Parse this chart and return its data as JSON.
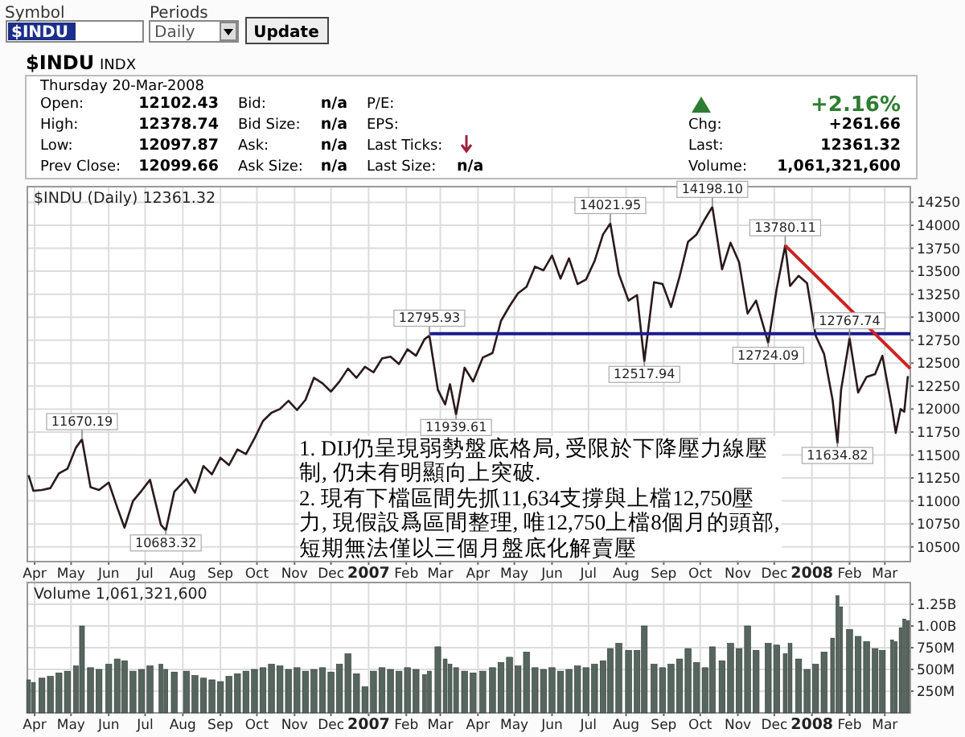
{
  "chart_data": [
    {
      "type": "other",
      "annotations": [
        "Symbol",
        "Periods",
        "$INDU",
        "Daily",
        "Update",
        "$INDU",
        "INDX",
        "Thursday  20-Mar-2008",
        "Open:",
        "12102.43",
        "Bid:",
        "n/a",
        "P/E:",
        "+2.16%",
        "High:",
        "12378.74",
        "Bid Size:",
        "n/a",
        "EPS:",
        "Chg:",
        "+261.66",
        "Low:",
        "12097.87",
        "Ask:",
        "n/a",
        "Last Ticks:",
        "Last:",
        "12361.32",
        "Prev Close:",
        "12099.66",
        "Ask Size:",
        "n/a",
        "Last Size:",
        "n/a",
        "Volume:",
        "1,061,321,600"
      ]
    },
    {
      "type": "line",
      "title": "$INDU (Daily) 12361.32",
      "grid": true,
      "xlim": [
        "2006-03-26",
        "2008-03-22"
      ],
      "ylim": [
        10340,
        14420
      ],
      "yticks": [
        10500,
        10750,
        11000,
        11250,
        11500,
        11750,
        12000,
        12250,
        12500,
        12750,
        13000,
        13250,
        13500,
        13750,
        14000,
        14250
      ],
      "xticks": [
        {
          "value": "2006-04-01",
          "label": "Apr"
        },
        {
          "value": "2006-05-01",
          "label": "May"
        },
        {
          "value": "2006-06-01",
          "label": "Jun"
        },
        {
          "value": "2006-07-01",
          "label": "Jul"
        },
        {
          "value": "2006-08-01",
          "label": "Aug"
        },
        {
          "value": "2006-09-01",
          "label": "Sep"
        },
        {
          "value": "2006-10-01",
          "label": "Oct"
        },
        {
          "value": "2006-11-01",
          "label": "Nov"
        },
        {
          "value": "2006-12-01",
          "label": "Dec"
        },
        {
          "value": "2007-01-01",
          "label": "2007"
        },
        {
          "value": "2007-02-01",
          "label": "Feb"
        },
        {
          "value": "2007-03-01",
          "label": "Mar"
        },
        {
          "value": "2007-04-01",
          "label": "Apr"
        },
        {
          "value": "2007-05-01",
          "label": "May"
        },
        {
          "value": "2007-06-01",
          "label": "Jun"
        },
        {
          "value": "2007-07-01",
          "label": "Jul"
        },
        {
          "value": "2007-08-01",
          "label": "Aug"
        },
        {
          "value": "2007-09-01",
          "label": "Sep"
        },
        {
          "value": "2007-10-01",
          "label": "Oct"
        },
        {
          "value": "2007-11-01",
          "label": "Nov"
        },
        {
          "value": "2007-12-01",
          "label": "Dec"
        },
        {
          "value": "2008-01-01",
          "label": "2008"
        },
        {
          "value": "2008-02-01",
          "label": "Feb"
        },
        {
          "value": "2008-03-01",
          "label": "Mar"
        }
      ],
      "x": [
        "2006-03-27",
        "2006-03-31",
        "2006-04-07",
        "2006-04-14",
        "2006-04-21",
        "2006-04-28",
        "2006-05-05",
        "2006-05-10",
        "2006-05-17",
        "2006-05-24",
        "2006-06-01",
        "2006-06-08",
        "2006-06-14",
        "2006-06-21",
        "2006-06-28",
        "2006-07-05",
        "2006-07-14",
        "2006-07-18",
        "2006-07-25",
        "2006-08-04",
        "2006-08-11",
        "2006-08-18",
        "2006-08-25",
        "2006-09-01",
        "2006-09-08",
        "2006-09-15",
        "2006-09-22",
        "2006-09-29",
        "2006-10-06",
        "2006-10-13",
        "2006-10-20",
        "2006-10-27",
        "2006-11-03",
        "2006-11-10",
        "2006-11-17",
        "2006-11-24",
        "2006-12-01",
        "2006-12-08",
        "2006-12-15",
        "2006-12-22",
        "2006-12-29",
        "2007-01-05",
        "2007-01-12",
        "2007-01-19",
        "2007-01-26",
        "2007-02-02",
        "2007-02-09",
        "2007-02-16",
        "2007-02-20",
        "2007-02-27",
        "2007-03-05",
        "2007-03-09",
        "2007-03-14",
        "2007-03-21",
        "2007-03-28",
        "2007-04-05",
        "2007-04-13",
        "2007-04-20",
        "2007-04-27",
        "2007-05-04",
        "2007-05-11",
        "2007-05-18",
        "2007-05-25",
        "2007-06-01",
        "2007-06-08",
        "2007-06-15",
        "2007-06-22",
        "2007-06-29",
        "2007-07-06",
        "2007-07-13",
        "2007-07-19",
        "2007-07-26",
        "2007-08-03",
        "2007-08-10",
        "2007-08-16",
        "2007-08-24",
        "2007-08-31",
        "2007-09-07",
        "2007-09-14",
        "2007-09-21",
        "2007-09-28",
        "2007-10-05",
        "2007-10-11",
        "2007-10-19",
        "2007-10-26",
        "2007-11-02",
        "2007-11-09",
        "2007-11-16",
        "2007-11-26",
        "2007-12-03",
        "2007-12-10",
        "2007-12-14",
        "2007-12-21",
        "2007-12-28",
        "2008-01-04",
        "2008-01-11",
        "2008-01-18",
        "2008-01-22",
        "2008-01-25",
        "2008-02-01",
        "2008-02-08",
        "2008-02-15",
        "2008-02-22",
        "2008-02-28",
        "2008-03-07",
        "2008-03-10",
        "2008-03-14",
        "2008-03-17",
        "2008-03-20"
      ],
      "series": [
        {
          "color": "#2a1a1a",
          "values": [
            11280,
            11110,
            11120,
            11140,
            11300,
            11350,
            11580,
            11670,
            11150,
            11120,
            11200,
            10930,
            10710,
            11000,
            11110,
            11230,
            10740,
            10680,
            11100,
            11240,
            11090,
            11380,
            11290,
            11470,
            11390,
            11560,
            11510,
            11680,
            11870,
            11960,
            12000,
            12090,
            11990,
            12100,
            12340,
            12280,
            12190,
            12300,
            12440,
            12340,
            12460,
            12400,
            12550,
            12570,
            12490,
            12650,
            12580,
            12760,
            12800,
            12210,
            12050,
            12270,
            11940,
            12450,
            12300,
            12560,
            12610,
            12960,
            13120,
            13260,
            13330,
            13550,
            13510,
            13670,
            13420,
            13640,
            13360,
            13410,
            13610,
            13900,
            14020,
            13470,
            13180,
            13240,
            12520,
            13380,
            13360,
            13110,
            13440,
            13820,
            13900,
            14070,
            14200,
            13520,
            13810,
            13600,
            13040,
            13180,
            12720,
            13310,
            13780,
            13340,
            13450,
            13370,
            12800,
            12600,
            12100,
            11630,
            12210,
            12770,
            12180,
            12350,
            12380,
            12580,
            12000,
            11740,
            12000,
            11970,
            12360
          ]
        },
        {
          "type": "line",
          "color": "#1c1c8c",
          "x": [
            "2007-02-20",
            "2008-03-22"
          ],
          "values": [
            12820,
            12820
          ]
        },
        {
          "type": "line",
          "color": "#cc2222",
          "x": [
            "2007-12-10",
            "2008-03-22"
          ],
          "values": [
            13780,
            12440
          ]
        }
      ],
      "annotations": [
        {
          "text": "11670.19",
          "x": "2006-05-10",
          "y": 11670.19
        },
        {
          "text": "10683.32",
          "x": "2006-07-18",
          "y": 10683.32
        },
        {
          "text": "12795.93",
          "x": "2007-02-20",
          "y": 12795.93
        },
        {
          "text": "11939.61",
          "x": "2007-03-14",
          "y": 11939.61
        },
        {
          "text": "14021.95",
          "x": "2007-07-19",
          "y": 14021.95
        },
        {
          "text": "12517.94",
          "x": "2007-08-16",
          "y": 12517.94
        },
        {
          "text": "14198.10",
          "x": "2007-10-11",
          "y": 14198.1
        },
        {
          "text": "13780.11",
          "x": "2007-12-10",
          "y": 13780.11
        },
        {
          "text": "12724.09",
          "x": "2007-11-26",
          "y": 12724.09
        },
        {
          "text": "12767.74",
          "x": "2008-02-01",
          "y": 12767.74
        },
        {
          "text": "11634.82",
          "x": "2008-01-22",
          "y": 11634.82
        },
        "1. DIJ仍呈現弱勢盤底格局, 受限於下降壓力線壓制, 仍未有明顯向上突破.",
        "2. 現有下檔區間先抓11,634支撐與上檔12,750壓力, 現假設爲區間整理, 唯12,750上檔8個月的頭部, 短期無法僅以三個月盤底化解賣壓"
      ]
    },
    {
      "type": "bar",
      "title": "Volume 1,061,321,600",
      "grid": true,
      "xlim": [
        "2006-03-26",
        "2008-03-22"
      ],
      "ylim": [
        0,
        1500000000
      ],
      "yticks": [
        {
          "value": 250000000,
          "label": "250M"
        },
        {
          "value": 500000000,
          "label": "500M"
        },
        {
          "value": 750000000,
          "label": "750M"
        },
        {
          "value": 1000000000,
          "label": "1.00B"
        },
        {
          "value": 1250000000,
          "label": "1.25B"
        }
      ],
      "xticks": [
        {
          "value": "2006-04-01",
          "label": "Apr"
        },
        {
          "value": "2006-05-01",
          "label": "May"
        },
        {
          "value": "2006-06-01",
          "label": "Jun"
        },
        {
          "value": "2006-07-01",
          "label": "Jul"
        },
        {
          "value": "2006-08-01",
          "label": "Aug"
        },
        {
          "value": "2006-09-01",
          "label": "Sep"
        },
        {
          "value": "2006-10-01",
          "label": "Oct"
        },
        {
          "value": "2006-11-01",
          "label": "Nov"
        },
        {
          "value": "2006-12-01",
          "label": "Dec"
        },
        {
          "value": "2007-01-01",
          "label": "2007"
        },
        {
          "value": "2007-02-01",
          "label": "Feb"
        },
        {
          "value": "2007-03-01",
          "label": "Mar"
        },
        {
          "value": "2007-04-01",
          "label": "Apr"
        },
        {
          "value": "2007-05-01",
          "label": "May"
        },
        {
          "value": "2007-06-01",
          "label": "Jun"
        },
        {
          "value": "2007-07-01",
          "label": "Jul"
        },
        {
          "value": "2007-08-01",
          "label": "Aug"
        },
        {
          "value": "2007-09-01",
          "label": "Sep"
        },
        {
          "value": "2007-10-01",
          "label": "Oct"
        },
        {
          "value": "2007-11-01",
          "label": "Nov"
        },
        {
          "value": "2007-12-01",
          "label": "Dec"
        },
        {
          "value": "2008-01-01",
          "label": "2008"
        },
        {
          "value": "2008-02-01",
          "label": "Feb"
        },
        {
          "value": "2008-03-01",
          "label": "Mar"
        }
      ],
      "x": [
        "2006-03-27",
        "2006-03-31",
        "2006-04-07",
        "2006-04-14",
        "2006-04-21",
        "2006-04-28",
        "2006-05-05",
        "2006-05-10",
        "2006-05-17",
        "2006-05-24",
        "2006-06-01",
        "2006-06-08",
        "2006-06-14",
        "2006-06-21",
        "2006-06-28",
        "2006-07-05",
        "2006-07-14",
        "2006-07-18",
        "2006-07-25",
        "2006-08-04",
        "2006-08-11",
        "2006-08-18",
        "2006-08-25",
        "2006-09-01",
        "2006-09-08",
        "2006-09-15",
        "2006-09-22",
        "2006-09-29",
        "2006-10-06",
        "2006-10-13",
        "2006-10-20",
        "2006-10-27",
        "2006-11-03",
        "2006-11-10",
        "2006-11-17",
        "2006-11-24",
        "2006-12-01",
        "2006-12-08",
        "2006-12-15",
        "2006-12-22",
        "2006-12-29",
        "2007-01-05",
        "2007-01-12",
        "2007-01-19",
        "2007-01-26",
        "2007-02-02",
        "2007-02-09",
        "2007-02-16",
        "2007-02-20",
        "2007-02-27",
        "2007-03-05",
        "2007-03-09",
        "2007-03-14",
        "2007-03-21",
        "2007-03-28",
        "2007-04-05",
        "2007-04-13",
        "2007-04-20",
        "2007-04-27",
        "2007-05-04",
        "2007-05-11",
        "2007-05-18",
        "2007-05-25",
        "2007-06-01",
        "2007-06-08",
        "2007-06-15",
        "2007-06-22",
        "2007-06-29",
        "2007-07-06",
        "2007-07-13",
        "2007-07-19",
        "2007-07-26",
        "2007-08-03",
        "2007-08-10",
        "2007-08-16",
        "2007-08-24",
        "2007-08-31",
        "2007-09-07",
        "2007-09-14",
        "2007-09-21",
        "2007-09-28",
        "2007-10-05",
        "2007-10-11",
        "2007-10-19",
        "2007-10-26",
        "2007-11-02",
        "2007-11-09",
        "2007-11-16",
        "2007-11-26",
        "2007-12-03",
        "2007-12-10",
        "2007-12-14",
        "2007-12-21",
        "2007-12-28",
        "2008-01-04",
        "2008-01-11",
        "2008-01-18",
        "2008-01-22",
        "2008-01-25",
        "2008-02-01",
        "2008-02-08",
        "2008-02-15",
        "2008-02-22",
        "2008-02-28",
        "2008-03-07",
        "2008-03-10",
        "2008-03-14",
        "2008-03-17",
        "2008-03-20"
      ],
      "series": [
        {
          "color": "#56665f",
          "values": [
            380000000,
            350000000,
            400000000,
            420000000,
            460000000,
            480000000,
            540000000,
            1000000000,
            520000000,
            500000000,
            560000000,
            620000000,
            600000000,
            480000000,
            500000000,
            540000000,
            560000000,
            500000000,
            470000000,
            480000000,
            430000000,
            400000000,
            380000000,
            360000000,
            420000000,
            450000000,
            480000000,
            500000000,
            520000000,
            560000000,
            540000000,
            500000000,
            520000000,
            480000000,
            500000000,
            520000000,
            470000000,
            560000000,
            680000000,
            450000000,
            300000000,
            480000000,
            520000000,
            500000000,
            480000000,
            520000000,
            500000000,
            440000000,
            480000000,
            760000000,
            620000000,
            560000000,
            520000000,
            480000000,
            460000000,
            480000000,
            520000000,
            580000000,
            640000000,
            540000000,
            700000000,
            520000000,
            500000000,
            520000000,
            480000000,
            500000000,
            540000000,
            520000000,
            560000000,
            600000000,
            740000000,
            800000000,
            720000000,
            720000000,
            1000000000,
            560000000,
            520000000,
            560000000,
            620000000,
            740000000,
            580000000,
            520000000,
            760000000,
            600000000,
            800000000,
            740000000,
            1000000000,
            720000000,
            800000000,
            780000000,
            680000000,
            800000000,
            620000000,
            500000000,
            560000000,
            700000000,
            860000000,
            1350000000,
            1220000000,
            960000000,
            880000000,
            820000000,
            740000000,
            720000000,
            840000000,
            820000000,
            980000000,
            1080000000,
            1060000000
          ]
        }
      ]
    }
  ]
}
